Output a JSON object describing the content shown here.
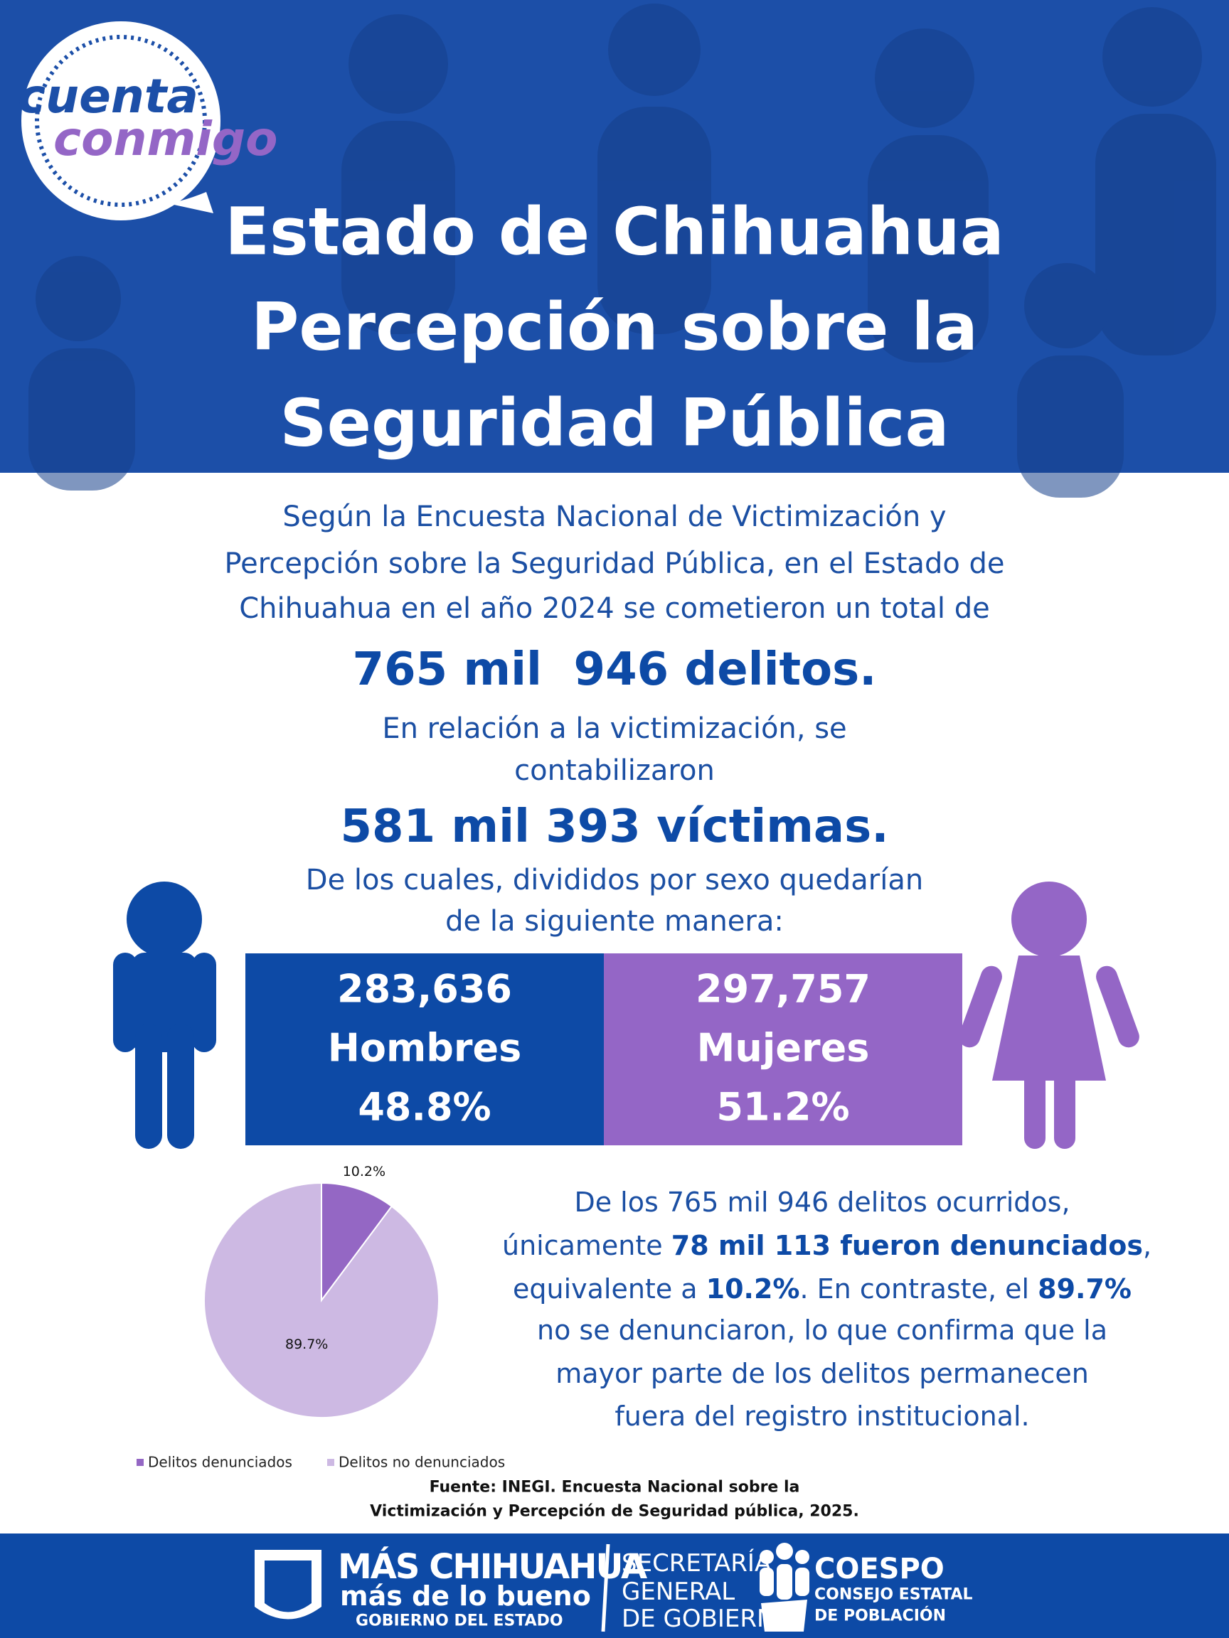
{
  "logo": {
    "line1": "cuenta",
    "line2": "conmigo"
  },
  "header": {
    "title_lines": [
      "Estado de Chihuahua",
      "Percepción sobre la",
      "Seguridad Pública"
    ]
  },
  "intro": {
    "lines": [
      "Según la Encuesta Nacional de Victimización y",
      "Percepción sobre la Seguridad Pública, en el Estado de",
      "Chihuahua en el año 2024 se cometieron un total de"
    ],
    "total_crimes": "765 mil  946 delitos.",
    "victim_lines": [
      "En relación a la victimización, se",
      "contabilizaron"
    ],
    "total_victims": "581 mil 393 víctimas.",
    "sex_lines": [
      "De los cuales, divididos por sexo quedarían",
      "de la siguiente manera:"
    ]
  },
  "sex_split": [
    {
      "count": "283,636",
      "label": "Hombres",
      "percent": "48.8%",
      "color": "#0d4aa6"
    },
    {
      "count": "297,757",
      "label": "Mujeres",
      "percent": "51.2%",
      "color": "#9466c6"
    }
  ],
  "chart_data": {
    "type": "pie",
    "categories": [
      "Delitos denunciados",
      "Delitos no denunciados"
    ],
    "values": [
      10.2,
      89.7
    ],
    "value_labels": [
      "10.2%",
      "89.7%"
    ],
    "colors": [
      "#9467c4",
      "#cdb9e3"
    ],
    "legend": "bottom"
  },
  "summary": {
    "lines": [
      [
        {
          "text": "De los 765 mil 946 delitos ocurridos,",
          "bold": false
        }
      ],
      [
        {
          "text": "únicamente ",
          "bold": false
        },
        {
          "text": "78 mil 113 fueron denunciados",
          "bold": true
        },
        {
          "text": ",",
          "bold": false
        }
      ],
      [
        {
          "text": "equivalente a ",
          "bold": false
        },
        {
          "text": "10.2%",
          "bold": true
        },
        {
          "text": ". En contraste, el ",
          "bold": false
        },
        {
          "text": "89.7%",
          "bold": true
        }
      ],
      [
        {
          "text": "no se denunciaron, lo que confirma que la",
          "bold": false
        }
      ],
      [
        {
          "text": "mayor parte de los delitos permanecen",
          "bold": false
        }
      ],
      [
        {
          "text": "fuera del registro institucional.",
          "bold": false
        }
      ]
    ]
  },
  "source": {
    "lines": [
      "Fuente: INEGI. Encuesta Nacional sobre la",
      "Victimización y Percepción de Seguridad pública, 2025."
    ]
  },
  "footer": {
    "gov": [
      "MÁS CHIHUAHUA",
      "más de lo bueno",
      "GOBIERNO DEL ESTADO"
    ],
    "secretaria": [
      "SECRETARÍA",
      "GENERAL",
      "DE GOBIERNO"
    ],
    "coespo": [
      "COESPO",
      "CONSEJO ESTATAL",
      "DE POBLACIÓN"
    ]
  }
}
